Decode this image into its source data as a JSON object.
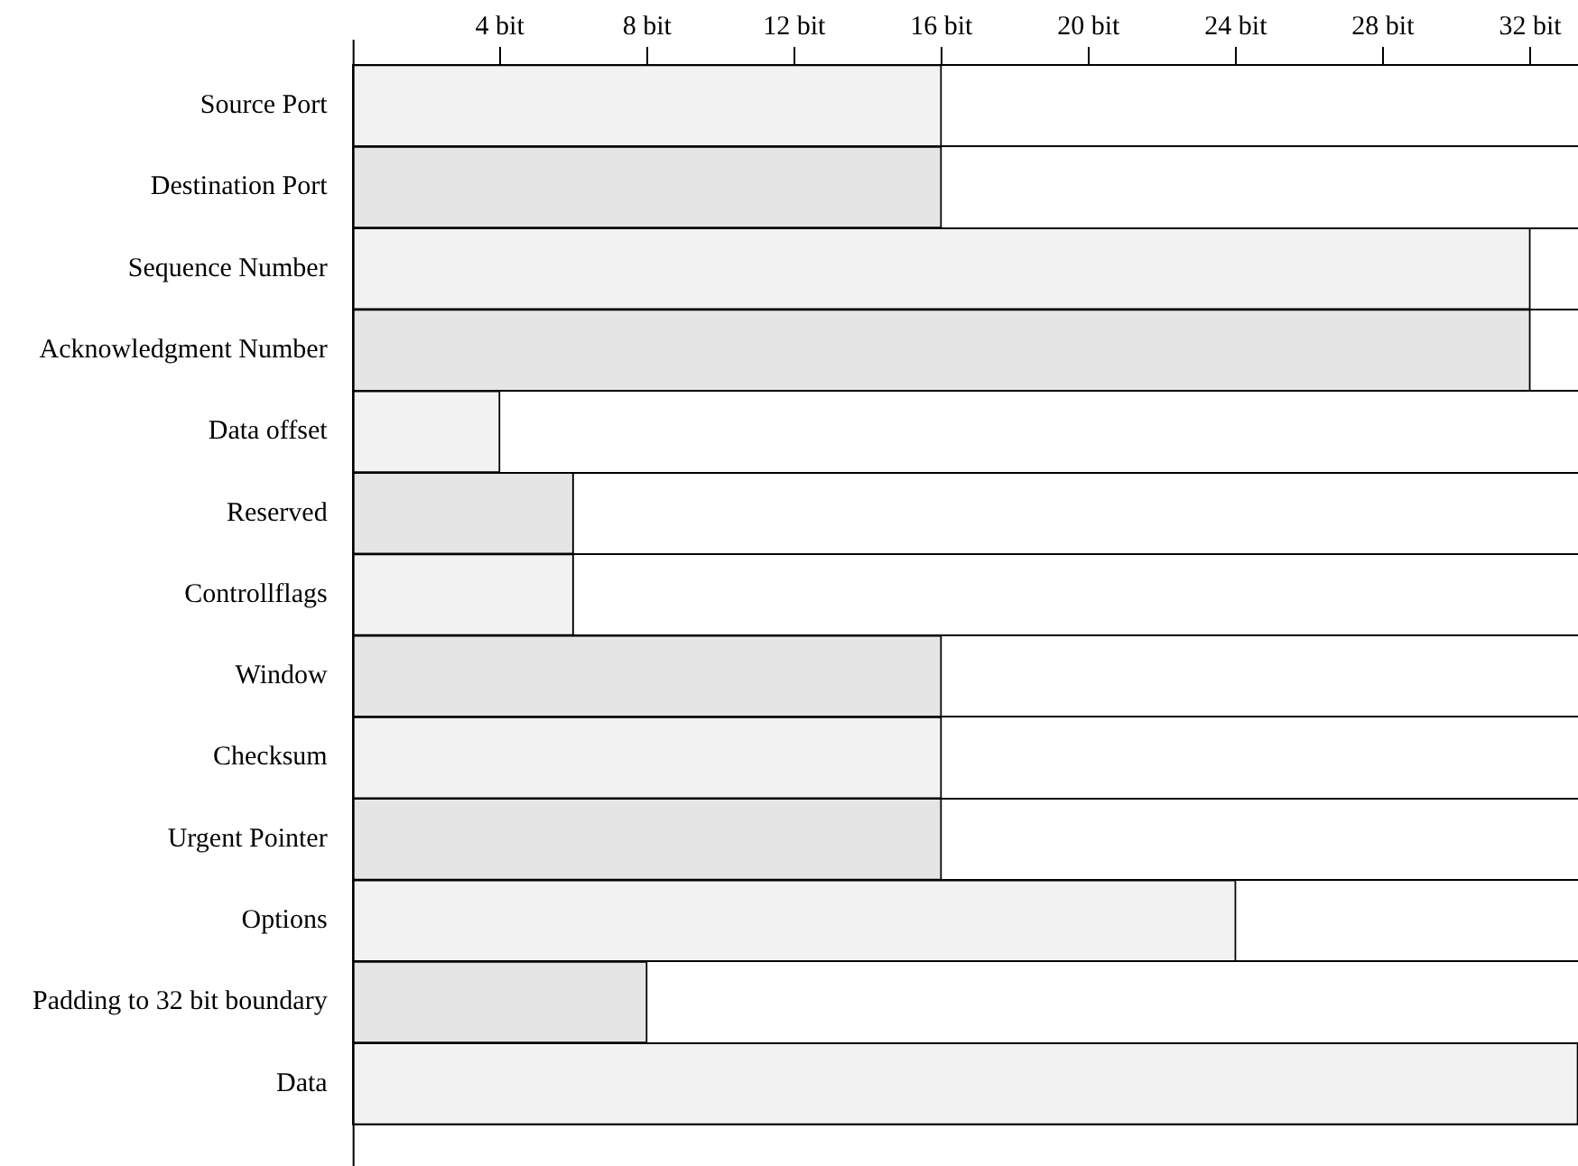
{
  "chart_data": {
    "type": "bar",
    "orientation": "horizontal",
    "categories": [
      "Source Port",
      "Destination Port",
      "Sequence Number",
      "Acknowledgment Number",
      "Data offset",
      "Reserved",
      "Controllflags",
      "Window",
      "Checksum",
      "Urgent Pointer",
      "Options",
      "Padding to 32 bit boundary",
      "Data"
    ],
    "values": [
      16,
      16,
      32,
      32,
      4,
      6,
      6,
      16,
      16,
      16,
      24,
      8,
      33.3
    ],
    "colors": [
      "#f2f2f2",
      "#e5e5e5",
      "#f2f2f2",
      "#e5e5e5",
      "#f2f2f2",
      "#e5e5e5",
      "#f2f2f2",
      "#e5e5e5",
      "#f2f2f2",
      "#e5e5e5",
      "#f2f2f2",
      "#e5e5e5",
      "#f2f2f2"
    ],
    "xlim": [
      0,
      33.3
    ],
    "xticks": [
      {
        "value": 4,
        "label": "4 bit"
      },
      {
        "value": 8,
        "label": "8 bit"
      },
      {
        "value": 12,
        "label": "12 bit"
      },
      {
        "value": 16,
        "label": "16 bit"
      },
      {
        "value": 20,
        "label": "20 bit"
      },
      {
        "value": 24,
        "label": "24 bit"
      },
      {
        "value": 28,
        "label": "28 bit"
      },
      {
        "value": 32,
        "label": "32 bit"
      }
    ],
    "grid": "y",
    "legend": false
  }
}
